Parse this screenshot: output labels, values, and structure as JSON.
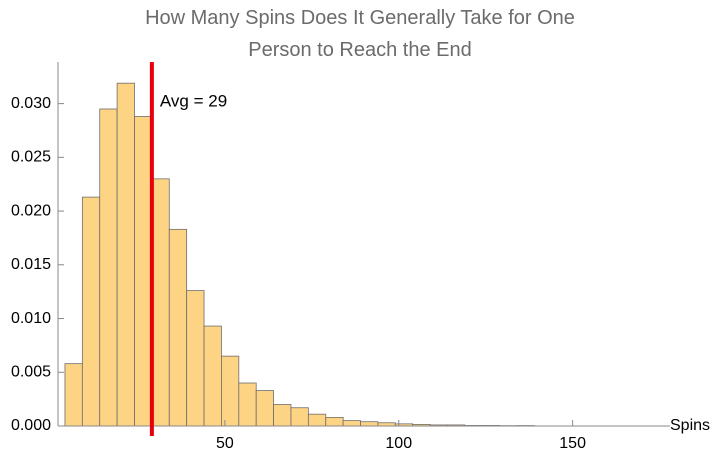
{
  "chart_data": {
    "type": "histogram",
    "title": "How Many Spins Does It Generally Take for One Person to Reach the End",
    "x_label": "Spins",
    "bins": [
      4,
      9,
      14,
      19,
      24,
      29,
      34,
      39,
      44,
      49,
      54,
      59,
      64,
      69,
      74,
      79,
      84,
      89,
      94,
      99,
      104,
      109,
      114,
      119,
      124,
      129,
      134,
      139
    ],
    "counts": [
      0.0058,
      0.0213,
      0.0295,
      0.0319,
      0.0288,
      0.023,
      0.0183,
      0.0126,
      0.0093,
      0.0065,
      0.004,
      0.0033,
      0.002,
      0.0017,
      0.0011,
      0.0008,
      0.0005,
      0.0004,
      0.0003,
      0.0002,
      0.00015,
      0.0001,
      0.0001,
      5e-05,
      5e-05,
      3e-05,
      4e-05
    ],
    "color": "#fdd384",
    "xlim": [
      2,
      178
    ],
    "xticks": [
      50,
      100,
      150
    ],
    "ylim": [
      0,
      0.0335
    ],
    "yticks": [
      {
        "value": 0,
        "label": "0.000"
      },
      {
        "value": 0.005,
        "label": "0.005"
      },
      {
        "value": 0.01,
        "label": "0.010"
      },
      {
        "value": 0.015,
        "label": "0.015"
      },
      {
        "value": 0.02,
        "label": "0.020"
      },
      {
        "value": 0.025,
        "label": "0.025"
      },
      {
        "value": 0.03,
        "label": "0.030"
      }
    ],
    "avg_line": {
      "x": 29,
      "label": "Avg = 29",
      "color": "#e8000b"
    }
  }
}
